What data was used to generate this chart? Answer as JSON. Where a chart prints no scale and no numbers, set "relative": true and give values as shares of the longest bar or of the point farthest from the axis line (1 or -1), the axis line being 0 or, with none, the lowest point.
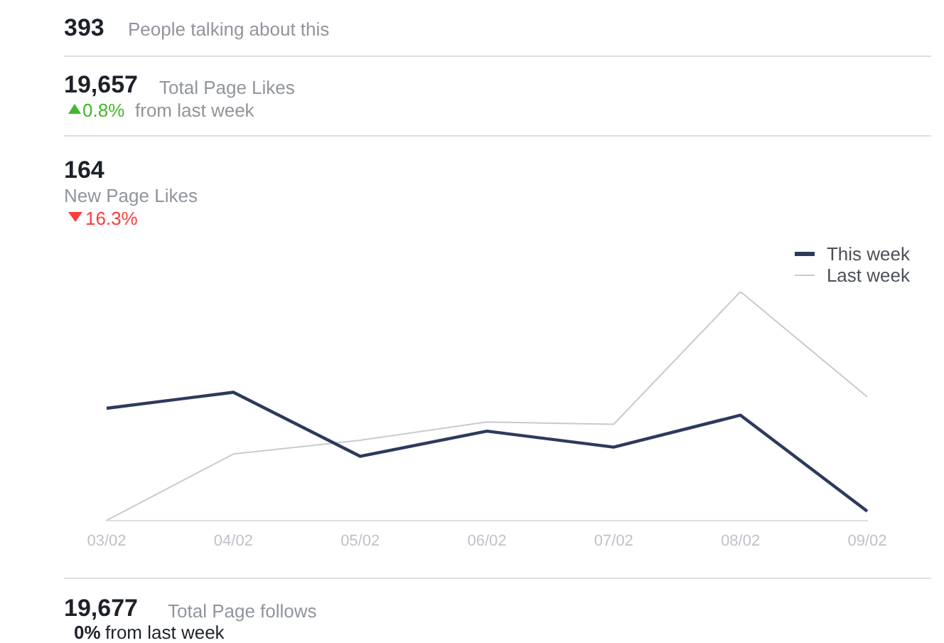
{
  "chart_data": {
    "type": "line",
    "relative": true,
    "categories": [
      "03/02",
      "04/02",
      "05/02",
      "06/02",
      "07/02",
      "08/02",
      "09/02"
    ],
    "series": [
      {
        "name": "This week",
        "color": "#2d3a5c",
        "values": [
          0.49,
          0.56,
          0.28,
          0.39,
          0.32,
          0.46,
          0.04
        ]
      },
      {
        "name": "Last week",
        "color": "#c8cacd",
        "values": [
          0,
          0.29,
          0.35,
          0.43,
          0.42,
          1,
          0.54
        ]
      }
    ],
    "legend": "top right",
    "grid": false,
    "marker": "none",
    "line_style": "solid",
    "annotations": [
      "393",
      "People talking about this",
      "19,657",
      "Total Page Likes",
      "0.8%",
      "from last week",
      "164",
      "New Page Likes",
      "16.3%",
      "19,677",
      "Total Page follows",
      "0%",
      "from last week"
    ]
  }
}
